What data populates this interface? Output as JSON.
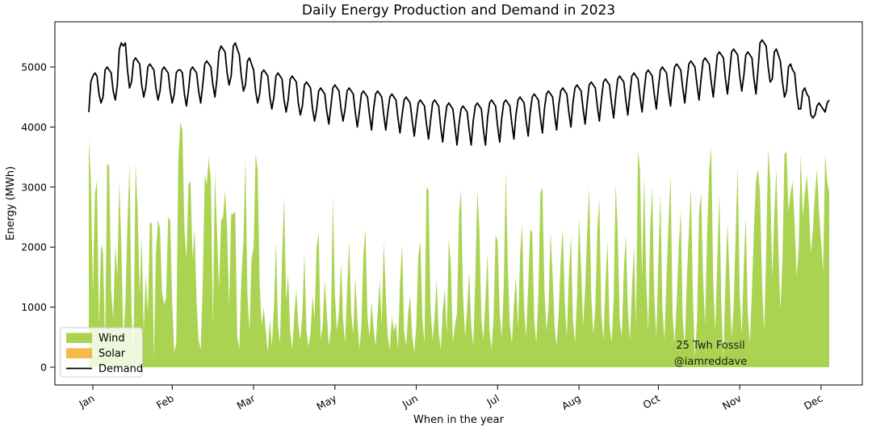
{
  "figure": {
    "title": "Daily Energy Production and Demand in 2023",
    "xlabel": "When in the year",
    "ylabel": "Energy (MWh)",
    "background_color": "#ffffff",
    "annotation": {
      "line1": "25 Twh Fossil",
      "line2": "@iamreddave"
    }
  },
  "chart_data": {
    "type": "area",
    "title": "Daily Energy Production and Demand in 2023",
    "xlabel": "When in the year",
    "ylabel": "Energy (MWh)",
    "x_unit": "day_of_year_2023",
    "x_range": [
      1,
      365
    ],
    "ylim": [
      -300,
      5750
    ],
    "yticks": [
      0,
      1000,
      2000,
      3000,
      4000,
      5000
    ],
    "xticks": [
      {
        "day": 3,
        "label": "Jan"
      },
      {
        "day": 42,
        "label": "Feb"
      },
      {
        "day": 82,
        "label": "Mar"
      },
      {
        "day": 122,
        "label": "May"
      },
      {
        "day": 162,
        "label": "Jun"
      },
      {
        "day": 202,
        "label": "Jul"
      },
      {
        "day": 242,
        "label": "Aug"
      },
      {
        "day": 281,
        "label": "Oct"
      },
      {
        "day": 321,
        "label": "Nov"
      },
      {
        "day": 361,
        "label": "Dec"
      }
    ],
    "grid": false,
    "legend_position": "lower-left",
    "series": [
      {
        "name": "Wind",
        "type": "area",
        "color": "#abd352",
        "values": [
          3800,
          3150,
          1250,
          2900,
          3100,
          700,
          2050,
          1900,
          350,
          3400,
          3350,
          1300,
          800,
          2050,
          1500,
          3100,
          2000,
          450,
          1100,
          2400,
          3380,
          900,
          250,
          3400,
          2600,
          1200,
          2200,
          600,
          1550,
          900,
          2400,
          2400,
          150,
          1900,
          2450,
          2300,
          1250,
          1050,
          1150,
          2500,
          2450,
          1100,
          250,
          400,
          3450,
          4080,
          3950,
          2300,
          1800,
          3050,
          3100,
          1800,
          2300,
          1100,
          450,
          300,
          1400,
          3200,
          3050,
          3500,
          3100,
          700,
          3250,
          2300,
          1300,
          2450,
          2500,
          2950,
          2300,
          1000,
          2550,
          2550,
          2600,
          500,
          300,
          1500,
          2100,
          3480,
          1200,
          600,
          1800,
          2000,
          3550,
          3300,
          1400,
          700,
          1000,
          600,
          250,
          800,
          350,
          1000,
          2100,
          700,
          400,
          1800,
          2850,
          1100,
          1550,
          600,
          300,
          850,
          1300,
          700,
          450,
          900,
          1900,
          600,
          350,
          550,
          1200,
          800,
          2000,
          2250,
          450,
          700,
          1450,
          900,
          350,
          650,
          2850,
          1200,
          600,
          950,
          1750,
          800,
          400,
          1300,
          2100,
          900,
          550,
          1500,
          850,
          300,
          700,
          1900,
          2300,
          850,
          500,
          1100,
          650,
          350,
          900,
          1450,
          700,
          2100,
          1200,
          500,
          300,
          850,
          600,
          750,
          300,
          1400,
          2050,
          600,
          350,
          900,
          1200,
          500,
          250,
          700,
          1850,
          2100,
          800,
          400,
          3000,
          2950,
          1000,
          450,
          850,
          1450,
          600,
          300,
          950,
          1300,
          550,
          2150,
          1700,
          400,
          700,
          900,
          2550,
          2950,
          1200,
          500,
          1000,
          1600,
          700,
          350,
          1500,
          2950,
          2300,
          800,
          450,
          1150,
          1900,
          600,
          300,
          850,
          2200,
          2100,
          900,
          500,
          1300,
          3250,
          1650,
          700,
          400,
          1050,
          1500,
          650,
          1850,
          2400,
          1000,
          500,
          1350,
          2300,
          2250,
          800,
          400,
          1200,
          2900,
          3000,
          1300,
          600,
          1000,
          2250,
          1550,
          700,
          350,
          900,
          1800,
          2300,
          1100,
          500,
          1500,
          2200,
          800,
          400,
          1150,
          2500,
          1650,
          700,
          1300,
          2250,
          3000,
          1200,
          550,
          1000,
          2300,
          2800,
          900,
          450,
          1400,
          2100,
          750,
          400,
          1100,
          3050,
          2300,
          800,
          500,
          1600,
          2200,
          1000,
          450,
          1300,
          2000,
          700,
          3600,
          3300,
          1500,
          3200,
          1500,
          600,
          2300,
          3000,
          1200,
          500,
          1800,
          2900,
          1000,
          450,
          1500,
          2400,
          3200,
          900,
          400,
          1100,
          2000,
          2600,
          800,
          350,
          1500,
          2250,
          3000,
          1200,
          150,
          800,
          2600,
          2900,
          1500,
          700,
          2250,
          3300,
          3650,
          1400,
          600,
          1800,
          2900,
          1000,
          150,
          1450,
          2400,
          1450,
          500,
          1000,
          2200,
          3350,
          1200,
          550,
          1700,
          2500,
          900,
          400,
          1300,
          2300,
          3100,
          3300,
          2900,
          1400,
          600,
          1900,
          3650,
          3100,
          1500,
          2550,
          3300,
          2000,
          950,
          1800,
          3550,
          3600,
          2600,
          2900,
          3100,
          2400,
          1500,
          2000,
          3550,
          2500,
          2900,
          3200,
          2700,
          1900,
          2300,
          2900,
          3300,
          2600,
          2100,
          1600,
          3550,
          3100,
          2900
        ]
      },
      {
        "name": "Solar",
        "type": "area",
        "color": "#f7b84a",
        "constant_value": 0,
        "note_visible_in_plot": "no orange visible; solar at ~0 all year"
      },
      {
        "name": "Demand",
        "type": "line",
        "color": "#000000",
        "values": [
          4250,
          4750,
          4850,
          4900,
          4850,
          4550,
          4400,
          4500,
          4950,
          5000,
          4950,
          4900,
          4600,
          4450,
          4700,
          5300,
          5400,
          5350,
          5400,
          4950,
          4650,
          4750,
          5100,
          5150,
          5100,
          5050,
          4700,
          4500,
          4650,
          5000,
          5050,
          5000,
          4950,
          4650,
          4450,
          4600,
          4950,
          5000,
          4950,
          4900,
          4600,
          4400,
          4550,
          4900,
          4950,
          4950,
          4900,
          4550,
          4350,
          4600,
          4950,
          5000,
          4950,
          4900,
          4600,
          4400,
          4700,
          5050,
          5100,
          5050,
          5000,
          4700,
          4500,
          4800,
          5250,
          5350,
          5300,
          5250,
          4900,
          4700,
          4850,
          5350,
          5400,
          5300,
          5200,
          4850,
          4600,
          4700,
          5100,
          5150,
          5050,
          4950,
          4600,
          4400,
          4550,
          4900,
          4950,
          4900,
          4850,
          4500,
          4300,
          4500,
          4850,
          4900,
          4850,
          4800,
          4450,
          4250,
          4450,
          4800,
          4850,
          4800,
          4750,
          4400,
          4200,
          4350,
          4700,
          4750,
          4700,
          4650,
          4300,
          4100,
          4300,
          4600,
          4650,
          4600,
          4550,
          4250,
          4050,
          4350,
          4650,
          4700,
          4650,
          4600,
          4300,
          4100,
          4300,
          4600,
          4650,
          4600,
          4550,
          4250,
          4000,
          4250,
          4550,
          4600,
          4550,
          4500,
          4200,
          3950,
          4300,
          4550,
          4600,
          4550,
          4500,
          4200,
          3950,
          4250,
          4500,
          4550,
          4500,
          4450,
          4150,
          3900,
          4200,
          4450,
          4500,
          4450,
          4400,
          4100,
          3850,
          4150,
          4400,
          4450,
          4400,
          4350,
          4050,
          3800,
          4100,
          4400,
          4450,
          4400,
          4350,
          4000,
          3750,
          4100,
          4350,
          4400,
          4350,
          4300,
          4000,
          3700,
          4050,
          4300,
          4350,
          4300,
          4250,
          3950,
          3700,
          4100,
          4350,
          4400,
          4350,
          4300,
          3950,
          3700,
          4150,
          4400,
          4450,
          4400,
          4350,
          4000,
          3750,
          4150,
          4400,
          4450,
          4400,
          4350,
          4050,
          3800,
          4200,
          4450,
          4500,
          4450,
          4400,
          4100,
          3850,
          4250,
          4500,
          4550,
          4500,
          4450,
          4150,
          3900,
          4300,
          4550,
          4600,
          4550,
          4500,
          4200,
          3950,
          4350,
          4600,
          4650,
          4600,
          4550,
          4250,
          4000,
          4400,
          4650,
          4700,
          4650,
          4600,
          4300,
          4050,
          4400,
          4700,
          4750,
          4700,
          4650,
          4350,
          4100,
          4450,
          4750,
          4800,
          4750,
          4700,
          4400,
          4150,
          4500,
          4800,
          4850,
          4800,
          4750,
          4450,
          4200,
          4550,
          4850,
          4900,
          4850,
          4800,
          4500,
          4250,
          4600,
          4900,
          4950,
          4900,
          4850,
          4550,
          4300,
          4650,
          4950,
          5000,
          4950,
          4900,
          4600,
          4350,
          4700,
          5000,
          5050,
          5000,
          4950,
          4650,
          4400,
          4750,
          5050,
          5100,
          5050,
          5000,
          4700,
          4450,
          4800,
          5100,
          5150,
          5100,
          5050,
          4750,
          4500,
          4850,
          5200,
          5250,
          5200,
          5150,
          4800,
          4550,
          4900,
          5250,
          5300,
          5250,
          5200,
          4850,
          4600,
          4850,
          5200,
          5250,
          5200,
          5150,
          4800,
          4550,
          4950,
          5400,
          5450,
          5400,
          5350,
          5000,
          4750,
          4800,
          5250,
          5300,
          5200,
          5100,
          4750,
          4500,
          4600,
          5000,
          5050,
          4950,
          4900,
          4550,
          4300,
          4300,
          4600,
          4650,
          4550,
          4500,
          4200,
          4150,
          4200,
          4350,
          4400,
          4350,
          4300,
          4250,
          4400,
          4450
        ]
      }
    ]
  },
  "legend": {
    "frame_color": "#cccccc",
    "frame_fill": "rgba(255,255,255,0.8)"
  }
}
